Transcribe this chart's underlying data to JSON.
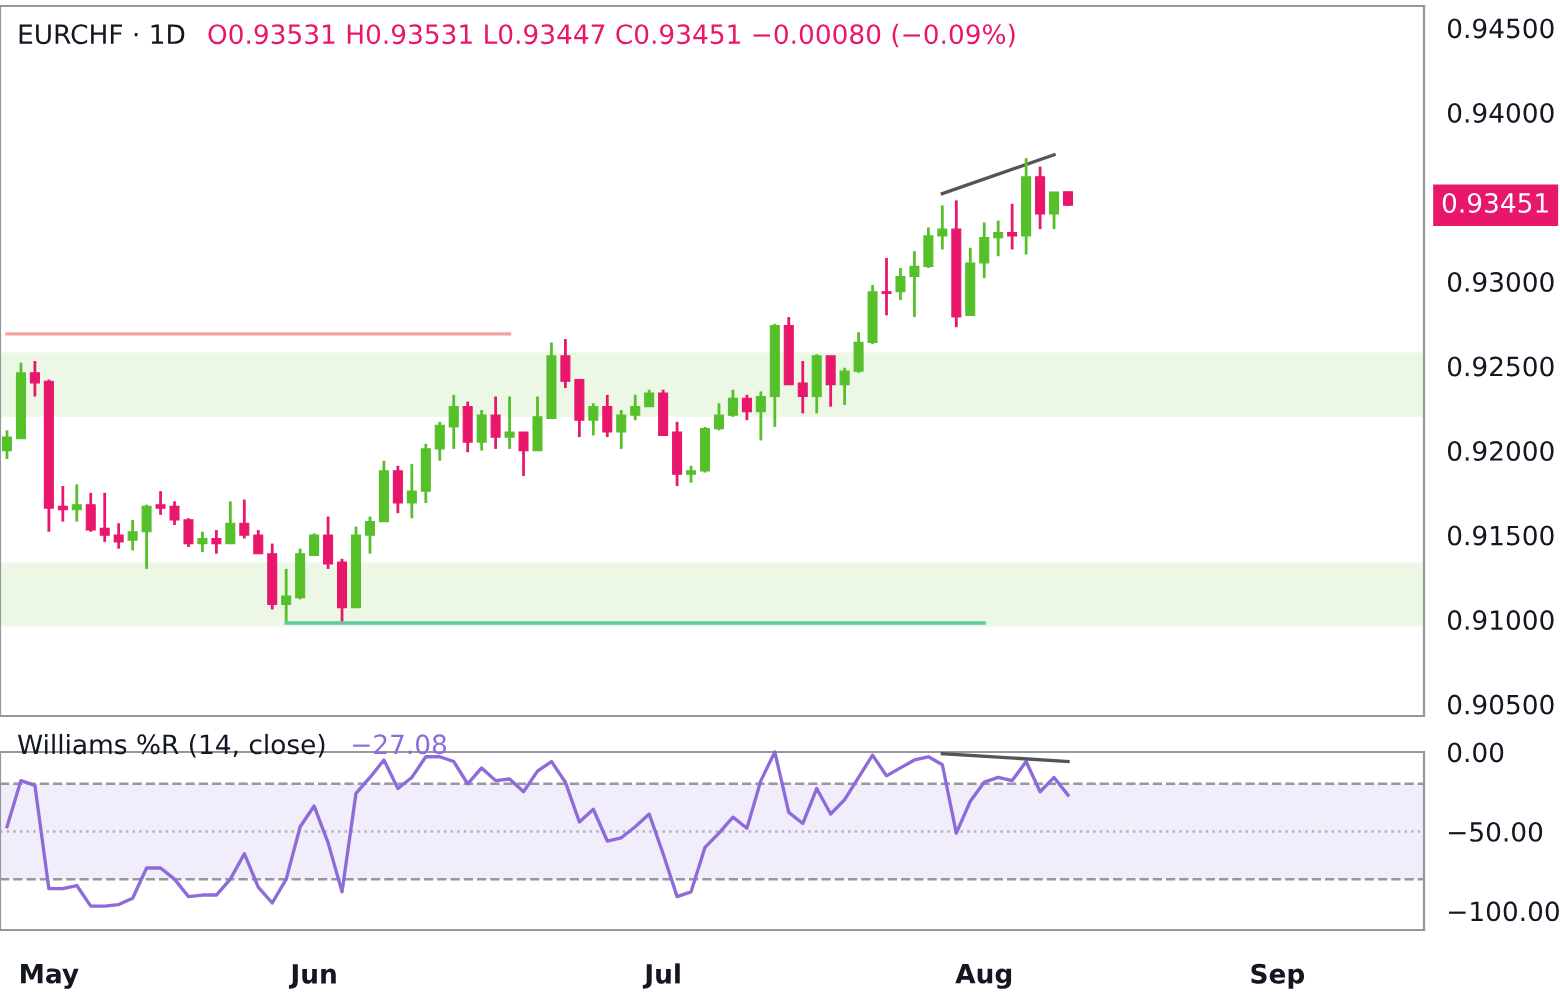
{
  "chart_data": [
    {
      "type": "candlestick",
      "title": "EURCHF · 1D",
      "subtitle": "O0.93531 H0.93531 L0.93447 C0.93451 −0.00080 (−0.09%)",
      "categories": [
        null,
        null,
        null,
        null,
        null,
        null,
        null,
        null,
        null,
        null,
        null,
        null,
        null,
        null,
        null,
        null,
        null,
        null,
        null,
        null,
        null,
        null,
        null,
        null,
        null,
        null,
        null,
        null,
        null,
        null,
        null,
        null,
        null,
        null,
        null,
        null,
        null,
        null,
        null,
        null,
        null,
        null,
        null,
        null,
        null,
        null,
        null,
        null,
        null,
        null,
        null,
        null,
        null,
        null,
        null,
        null,
        null,
        null,
        null,
        null,
        null,
        null,
        null,
        null,
        null,
        null,
        null,
        null,
        null,
        null,
        null,
        null,
        null,
        null,
        null,
        null,
        null,
        null,
        null,
        null,
        null,
        null,
        null,
        null,
        null,
        null,
        null,
        null,
        null,
        null,
        null,
        null,
        null,
        null,
        null,
        null,
        null,
        null,
        null,
        null,
        null,
        null
      ],
      "ohlc": [
        [
          0.92,
          0.9212,
          0.9195,
          0.9208
        ],
        [
          0.9207,
          0.9252,
          0.9207,
          0.9246
        ],
        [
          0.9246,
          0.9253,
          0.9232,
          0.924
        ],
        [
          0.9241,
          0.9242,
          0.9152,
          0.9166
        ],
        [
          0.9167,
          0.9179,
          0.9158,
          0.9165
        ],
        [
          0.9165,
          0.918,
          0.9158,
          0.9168
        ],
        [
          0.9168,
          0.9175,
          0.9152,
          0.9153
        ],
        [
          0.9154,
          0.9175,
          0.9146,
          0.915
        ],
        [
          0.915,
          0.9157,
          0.9142,
          0.9146
        ],
        [
          0.9147,
          0.9159,
          0.9141,
          0.9152
        ],
        [
          0.9152,
          0.9168,
          0.913,
          0.9167
        ],
        [
          0.9168,
          0.9176,
          0.9162,
          0.9166
        ],
        [
          0.9167,
          0.917,
          0.9156,
          0.9159
        ],
        [
          0.9159,
          0.916,
          0.9143,
          0.9145
        ],
        [
          0.9145,
          0.9152,
          0.914,
          0.9148
        ],
        [
          0.9148,
          0.9153,
          0.9139,
          0.9145
        ],
        [
          0.9145,
          0.917,
          0.9145,
          0.9157
        ],
        [
          0.9157,
          0.9171,
          0.9148,
          0.915
        ],
        [
          0.915,
          0.9153,
          0.9139,
          0.9139
        ],
        [
          0.9139,
          0.9145,
          0.9106,
          0.9109
        ],
        [
          0.9109,
          0.913,
          0.9099,
          0.9114
        ],
        [
          0.9113,
          0.9142,
          0.9112,
          0.9139
        ],
        [
          0.9138,
          0.9151,
          0.9138,
          0.915
        ],
        [
          0.915,
          0.9161,
          0.913,
          0.9133
        ],
        [
          0.9134,
          0.9136,
          0.9099,
          0.9107
        ],
        [
          0.9107,
          0.9155,
          0.9107,
          0.915
        ],
        [
          0.915,
          0.9161,
          0.9139,
          0.9158
        ],
        [
          0.9158,
          0.9194,
          0.9158,
          0.9188
        ],
        [
          0.9188,
          0.9191,
          0.9163,
          0.9169
        ],
        [
          0.9169,
          0.9192,
          0.916,
          0.9176
        ],
        [
          0.9176,
          0.9204,
          0.9169,
          0.9201
        ],
        [
          0.9201,
          0.9217,
          0.9194,
          0.9215
        ],
        [
          0.9214,
          0.9233,
          0.9201,
          0.9226
        ],
        [
          0.9226,
          0.9229,
          0.9199,
          0.9205
        ],
        [
          0.9205,
          0.9224,
          0.92,
          0.9221
        ],
        [
          0.9221,
          0.9232,
          0.9201,
          0.9208
        ],
        [
          0.9208,
          0.9232,
          0.9201,
          0.9211
        ],
        [
          0.9211,
          0.9211,
          0.9185,
          0.92
        ],
        [
          0.92,
          0.9232,
          0.92,
          0.922
        ],
        [
          0.9219,
          0.9264,
          0.9219,
          0.9256
        ],
        [
          0.9256,
          0.9266,
          0.9237,
          0.9241
        ],
        [
          0.9242,
          0.9242,
          0.9208,
          0.9218
        ],
        [
          0.9218,
          0.9228,
          0.9209,
          0.9226
        ],
        [
          0.9226,
          0.9233,
          0.9208,
          0.9211
        ],
        [
          0.9211,
          0.9224,
          0.9201,
          0.9221
        ],
        [
          0.9221,
          0.9233,
          0.9218,
          0.9226
        ],
        [
          0.9226,
          0.9236,
          0.9226,
          0.9234
        ],
        [
          0.9234,
          0.9236,
          0.9209,
          0.9209
        ],
        [
          0.9211,
          0.9217,
          0.9179,
          0.9186
        ],
        [
          0.9186,
          0.9191,
          0.9181,
          0.9188
        ],
        [
          0.9188,
          0.9214,
          0.9187,
          0.9213
        ],
        [
          0.9213,
          0.9228,
          0.9212,
          0.9221
        ],
        [
          0.9221,
          0.9236,
          0.922,
          0.9231
        ],
        [
          0.9231,
          0.9233,
          0.9218,
          0.9223
        ],
        [
          0.9223,
          0.9235,
          0.9206,
          0.9232
        ],
        [
          0.9232,
          0.9275,
          0.9214,
          0.9274
        ],
        [
          0.9274,
          0.9279,
          0.9239,
          0.9239
        ],
        [
          0.924,
          0.9253,
          0.9222,
          0.9232
        ],
        [
          0.9232,
          0.9257,
          0.9222,
          0.9256
        ],
        [
          0.9256,
          0.9256,
          0.9226,
          0.9239
        ],
        [
          0.9239,
          0.9249,
          0.9227,
          0.9247
        ],
        [
          0.9247,
          0.927,
          0.9246,
          0.9264
        ],
        [
          0.9264,
          0.9298,
          0.9263,
          0.9294
        ],
        [
          0.9294,
          0.9314,
          0.928,
          0.9293
        ],
        [
          0.9294,
          0.9308,
          0.9289,
          0.9303
        ],
        [
          0.9303,
          0.9318,
          0.9279,
          0.9309
        ],
        [
          0.9309,
          0.9332,
          0.9308,
          0.9327
        ],
        [
          0.9327,
          0.9345,
          0.9319,
          0.9331
        ],
        [
          0.9331,
          0.9348,
          0.9273,
          0.9279
        ],
        [
          0.928,
          0.932,
          0.928,
          0.9311
        ],
        [
          0.9311,
          0.9335,
          0.9302,
          0.9326
        ],
        [
          0.9326,
          0.9336,
          0.9315,
          0.9329
        ],
        [
          0.9329,
          0.9346,
          0.9319,
          0.9327
        ],
        [
          0.9327,
          0.9373,
          0.9316,
          0.9362
        ],
        [
          0.9362,
          0.9368,
          0.9331,
          0.934
        ],
        [
          0.934,
          0.9353,
          0.9331,
          0.9353
        ],
        [
          0.93531,
          0.93531,
          0.93447,
          0.93451
        ],
        null,
        null,
        null,
        null,
        null,
        null,
        null,
        null,
        null,
        null,
        null,
        null,
        null,
        null,
        null,
        null,
        null,
        null,
        null,
        null,
        null,
        null,
        null,
        null,
        null
      ],
      "colors": [
        "#56c02b",
        "#56c02b",
        "#e8176c",
        "#e8176c",
        "#e8176c",
        "#56c02b",
        "#e8176c",
        "#e8176c",
        "#e8176c",
        "#56c02b",
        "#56c02b",
        "#e8176c",
        "#e8176c",
        "#e8176c",
        "#56c02b",
        "#e8176c",
        "#56c02b",
        "#e8176c",
        "#e8176c",
        "#e8176c",
        "#56c02b",
        "#56c02b",
        "#56c02b",
        "#e8176c",
        "#e8176c",
        "#56c02b",
        "#56c02b",
        "#56c02b",
        "#e8176c",
        "#56c02b",
        "#56c02b",
        "#56c02b",
        "#56c02b",
        "#e8176c",
        "#56c02b",
        "#e8176c",
        "#56c02b",
        "#e8176c",
        "#56c02b",
        "#56c02b",
        "#e8176c",
        "#e8176c",
        "#56c02b",
        "#e8176c",
        "#56c02b",
        "#56c02b",
        "#56c02b",
        "#e8176c",
        "#e8176c",
        "#56c02b",
        "#56c02b",
        "#56c02b",
        "#56c02b",
        "#e8176c",
        "#56c02b",
        "#56c02b",
        "#e8176c",
        "#e8176c",
        "#56c02b",
        "#e8176c",
        "#56c02b",
        "#56c02b",
        "#56c02b",
        "#e8176c",
        "#56c02b",
        "#56c02b",
        "#56c02b",
        "#56c02b",
        "#e8176c",
        "#56c02b",
        "#56c02b",
        "#56c02b",
        "#e8176c",
        "#56c02b",
        "#e8176c",
        "#56c02b",
        "#e8176c",
        null,
        null,
        null,
        null,
        null,
        null,
        null,
        null,
        null,
        null,
        null,
        null,
        null,
        null,
        null,
        null,
        null,
        null,
        null,
        null,
        null,
        null,
        null,
        null,
        null
      ],
      "series": [
        {
          "type": "line",
          "color": "#f7a1a1",
          "values": [
            0.9269,
            0.9269,
            0.9269,
            0.9269,
            0.9269,
            0.9269,
            0.9269,
            0.9269,
            0.9269,
            0.9269,
            0.9269,
            0.9269,
            0.9269,
            0.9269,
            0.9269,
            0.9269,
            0.9269,
            0.9269,
            0.9269,
            0.9269,
            0.9269,
            0.9269,
            0.9269,
            0.9269,
            0.9269,
            0.9269,
            0.9269,
            0.9269,
            0.9269,
            0.9269,
            0.9269,
            0.9269,
            0.9269,
            0.9269,
            0.9269,
            0.9269,
            0.9269,
            null,
            null,
            null,
            null,
            null,
            null,
            null,
            null,
            null,
            null,
            null,
            null,
            null,
            null,
            null,
            null,
            null,
            null,
            null,
            null,
            null,
            null,
            null,
            null,
            null,
            null,
            null,
            null,
            null,
            null,
            null,
            null,
            null,
            null,
            null,
            null,
            null,
            null,
            null,
            null,
            null,
            null,
            null,
            null,
            null,
            null,
            null,
            null,
            null,
            null,
            null,
            null,
            null,
            null,
            null,
            null,
            null,
            null,
            null,
            null,
            null,
            null,
            null,
            null,
            null
          ]
        },
        {
          "type": "line",
          "color": "#5fc9a0",
          "values": [
            null,
            null,
            null,
            null,
            null,
            null,
            null,
            null,
            null,
            null,
            null,
            null,
            null,
            null,
            null,
            null,
            null,
            null,
            null,
            null,
            0.9098,
            0.9098,
            0.9098,
            0.9098,
            0.9098,
            0.9098,
            0.9098,
            0.9098,
            0.9098,
            0.9098,
            0.9098,
            0.9098,
            0.9098,
            0.9098,
            0.9098,
            0.9098,
            0.9098,
            0.9098,
            0.9098,
            0.9098,
            0.9098,
            0.9098,
            0.9098,
            0.9098,
            0.9098,
            0.9098,
            0.9098,
            0.9098,
            0.9098,
            0.9098,
            0.9098,
            0.9098,
            0.9098,
            0.9098,
            0.9098,
            0.9098,
            0.9098,
            0.9098,
            0.9098,
            0.9098,
            0.9098,
            0.9098,
            0.9098,
            0.9098,
            0.9098,
            0.9098,
            0.9098,
            0.9098,
            0.9098,
            0.9098,
            0.9098,
            null,
            null,
            null,
            null,
            null,
            null,
            null,
            null,
            null,
            null,
            null,
            null,
            null,
            null,
            null,
            null,
            null,
            null,
            null,
            null,
            null,
            null,
            null,
            null,
            null,
            null,
            null,
            null,
            null,
            null,
            null
          ]
        },
        {
          "type": "line",
          "color": "#555555",
          "values": [
            null,
            null,
            null,
            null,
            null,
            null,
            null,
            null,
            null,
            null,
            null,
            null,
            null,
            null,
            null,
            null,
            null,
            null,
            null,
            null,
            null,
            null,
            null,
            null,
            null,
            null,
            null,
            null,
            null,
            null,
            null,
            null,
            null,
            null,
            null,
            null,
            null,
            null,
            null,
            null,
            null,
            null,
            null,
            null,
            null,
            null,
            null,
            null,
            null,
            null,
            null,
            null,
            null,
            null,
            null,
            null,
            null,
            null,
            null,
            null,
            null,
            null,
            null,
            null,
            null,
            null,
            null,
            0.9352,
            null,
            null,
            null,
            null,
            null,
            null,
            null,
            0.9375,
            null,
            null,
            null,
            null,
            null,
            null,
            null,
            null,
            null,
            null,
            null,
            null,
            null,
            null,
            null,
            null,
            null,
            null,
            null,
            null,
            null,
            null,
            null,
            null,
            null,
            null
          ]
        }
      ],
      "bands": [
        {
          "axis": "y",
          "from": 0.922,
          "to": 0.9258,
          "color": "#edf7e6"
        },
        {
          "axis": "y",
          "from": 0.9096,
          "to": 0.9134,
          "color": "#edf7e6"
        }
      ],
      "annotations": [
        "0.93451"
      ],
      "ylim": [
        0.9043,
        0.9463
      ],
      "yticks": [
        {
          "value": 0.905,
          "label": "0.90500"
        },
        {
          "value": 0.91,
          "label": "0.91000"
        },
        {
          "value": 0.915,
          "label": "0.91500"
        },
        {
          "value": 0.92,
          "label": "0.92000"
        },
        {
          "value": 0.925,
          "label": "0.92500"
        },
        {
          "value": 0.93,
          "label": "0.93000"
        },
        {
          "value": 0.94,
          "label": "0.94000"
        },
        {
          "value": 0.945,
          "label": "0.94500"
        }
      ],
      "tick_labels": "y"
    },
    {
      "type": "line",
      "title": "Williams %R (14, close)",
      "categories": [
        null,
        null,
        null,
        "May",
        null,
        null,
        null,
        null,
        null,
        null,
        null,
        null,
        null,
        null,
        null,
        null,
        null,
        null,
        null,
        null,
        null,
        null,
        "Jun",
        null,
        null,
        null,
        null,
        null,
        null,
        null,
        null,
        null,
        null,
        null,
        null,
        null,
        null,
        null,
        null,
        null,
        null,
        null,
        null,
        null,
        null,
        null,
        null,
        "Jul",
        null,
        null,
        null,
        null,
        null,
        null,
        null,
        null,
        null,
        null,
        null,
        null,
        null,
        null,
        null,
        null,
        null,
        null,
        null,
        null,
        null,
        null,
        "Aug",
        null,
        null,
        null,
        null,
        null,
        null,
        null,
        null,
        null,
        null,
        null,
        null,
        null,
        null,
        null,
        null,
        null,
        null,
        null,
        null,
        "Sep",
        null,
        null,
        null,
        null,
        null,
        null,
        null,
        null,
        null,
        null
      ],
      "series": [
        {
          "color": "#8e6bd8",
          "values": [
            -47,
            -18,
            -21,
            -86,
            -86,
            -84,
            -97,
            -97,
            -96,
            -92,
            -73,
            -73,
            -80,
            -91,
            -90,
            -90,
            -80,
            -64,
            -85,
            -95,
            -80,
            -47,
            -34,
            -57,
            -88,
            -26,
            -16,
            -5,
            -23,
            -16,
            -3,
            -3,
            -6,
            -20,
            -10,
            -18,
            -17,
            -25,
            -12,
            -6,
            -19,
            -44,
            -36,
            -56,
            -54,
            -47,
            -39,
            -64,
            -91,
            -88,
            -60,
            -51,
            -41,
            -48,
            -18,
            0,
            -38,
            -45,
            -23,
            -39,
            -30,
            -16,
            -2,
            -15,
            -10,
            -5,
            -3,
            -8,
            -51,
            -31,
            -19,
            -16,
            -18,
            -6,
            -25,
            -16,
            -27.08,
            null,
            null,
            null,
            null,
            null,
            null,
            null,
            null,
            null,
            null,
            null,
            null,
            null,
            null,
            null,
            null,
            null,
            null,
            null,
            null,
            null,
            null,
            null,
            null,
            null
          ]
        },
        {
          "color": "#555555",
          "values": [
            null,
            null,
            null,
            null,
            null,
            null,
            null,
            null,
            null,
            null,
            null,
            null,
            null,
            null,
            null,
            null,
            null,
            null,
            null,
            null,
            null,
            null,
            null,
            null,
            null,
            null,
            null,
            null,
            null,
            null,
            null,
            null,
            null,
            null,
            null,
            null,
            null,
            null,
            null,
            null,
            null,
            null,
            null,
            null,
            null,
            null,
            null,
            null,
            null,
            null,
            null,
            null,
            null,
            null,
            null,
            null,
            null,
            null,
            null,
            null,
            null,
            null,
            null,
            null,
            null,
            null,
            null,
            -1,
            null,
            null,
            null,
            null,
            null,
            null,
            null,
            null,
            -6,
            null,
            null,
            null,
            null,
            null,
            null,
            null,
            null,
            null,
            null,
            null,
            null,
            null,
            null,
            null,
            null,
            null,
            null,
            null,
            null,
            null,
            null,
            null,
            null,
            null
          ]
        }
      ],
      "annotations": [
        "−27.08"
      ],
      "bands": [
        {
          "axis": "y",
          "from": -80,
          "to": -20,
          "color": "#f1edfa"
        }
      ],
      "ref_lines": [
        {
          "axis": "y",
          "value": -20,
          "color": "#9598a1",
          "line_style": "dashed"
        },
        {
          "axis": "y",
          "value": -50,
          "color": "#b2b5be",
          "line_style": "dotted"
        },
        {
          "axis": "y",
          "value": -80,
          "color": "#9598a1",
          "line_style": "dashed"
        }
      ],
      "ylim": [
        -112,
        0
      ],
      "yticks": [
        {
          "value": 0,
          "label": "0.00"
        },
        {
          "value": -50,
          "label": "−50.00"
        },
        {
          "value": -100,
          "label": "−100.00"
        }
      ]
    }
  ]
}
